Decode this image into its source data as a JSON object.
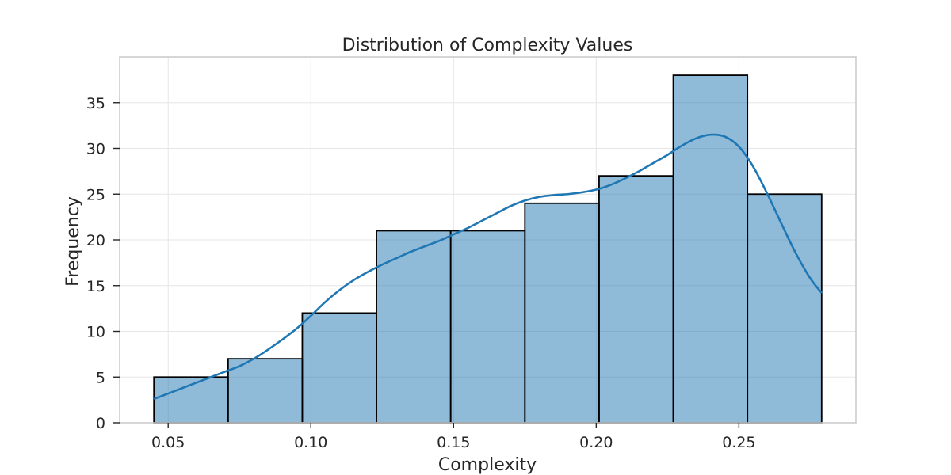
{
  "chart_data": {
    "type": "bar",
    "title": "Distribution of Complexity Values",
    "xlabel": "Complexity",
    "ylabel": "Frequency",
    "bin_edges": [
      0.045,
      0.071,
      0.097,
      0.123,
      0.149,
      0.175,
      0.201,
      0.227,
      0.253,
      0.279
    ],
    "values": [
      5,
      7,
      12,
      21,
      21,
      24,
      27,
      38,
      25
    ],
    "xlim": [
      0.033,
      0.291
    ],
    "ylim": [
      0,
      40
    ],
    "xticks": [
      0.05,
      0.1,
      0.15,
      0.2,
      0.25
    ],
    "xtick_labels": [
      "0.05",
      "0.10",
      "0.15",
      "0.20",
      "0.25"
    ],
    "yticks": [
      0,
      5,
      10,
      15,
      20,
      25,
      30,
      35
    ],
    "ytick_labels": [
      "0",
      "5",
      "10",
      "15",
      "20",
      "25",
      "30",
      "35"
    ],
    "grid": true,
    "kde": {
      "x": [
        0.045,
        0.05,
        0.055,
        0.06,
        0.065,
        0.07,
        0.075,
        0.08,
        0.085,
        0.09,
        0.095,
        0.1,
        0.105,
        0.11,
        0.115,
        0.12,
        0.125,
        0.13,
        0.135,
        0.14,
        0.145,
        0.15,
        0.155,
        0.16,
        0.165,
        0.17,
        0.175,
        0.18,
        0.185,
        0.19,
        0.195,
        0.2,
        0.205,
        0.21,
        0.215,
        0.22,
        0.225,
        0.23,
        0.235,
        0.24,
        0.245,
        0.25,
        0.255,
        0.26,
        0.265,
        0.27,
        0.275,
        0.279
      ],
      "y": [
        2.6,
        3.2,
        3.8,
        4.4,
        5.0,
        5.6,
        6.2,
        7.0,
        8.0,
        9.1,
        10.3,
        11.7,
        13.2,
        14.5,
        15.6,
        16.5,
        17.3,
        18.0,
        18.7,
        19.3,
        19.9,
        20.6,
        21.3,
        22.1,
        22.9,
        23.7,
        24.3,
        24.7,
        24.9,
        25.0,
        25.2,
        25.5,
        26.0,
        26.7,
        27.5,
        28.4,
        29.3,
        30.3,
        31.1,
        31.5,
        31.3,
        30.2,
        28.0,
        25.0,
        21.7,
        18.5,
        15.8,
        14.2
      ]
    },
    "colors": {
      "bar_fill": "#1f77b4",
      "bar_fill_opacity": 0.5,
      "bar_edge": "#000000",
      "kde_line": "#1f77b4"
    }
  }
}
